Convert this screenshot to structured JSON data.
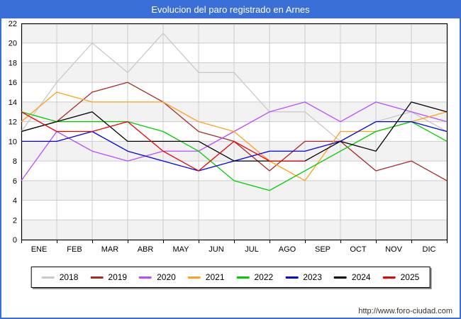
{
  "header": {
    "title": "Evolucion del paro registrado en Arnes"
  },
  "footer": {
    "url": "http://www.foro-ciudad.com"
  },
  "colors": {
    "frame_blue": "#3a6fd8",
    "plot_stripe": "#f2f2f2",
    "grid": "#cccccc",
    "plot_border": "#000000",
    "axis_text": "#000000",
    "footer_text": "#333333"
  },
  "chart_data": {
    "type": "line",
    "title": "Evolucion del paro registrado en Arnes",
    "categories": [
      "ENE",
      "FEB",
      "MAR",
      "ABR",
      "MAY",
      "JUN",
      "JUL",
      "AGO",
      "SEP",
      "OCT",
      "NOV",
      "DIC"
    ],
    "ylabel": "",
    "xlabel": "",
    "ylim": [
      0,
      22
    ],
    "ytick_step": 2,
    "grid": true,
    "legend_position": "bottom",
    "note": "each series starts at the left axis with a lead-in value before ENE; 2025 ends at AGO",
    "series": [
      {
        "name": "2018",
        "color": "#c9c9c9",
        "axis_start": 11,
        "values": [
          16,
          20,
          17,
          21,
          17,
          17,
          13,
          13,
          10,
          12,
          13,
          11
        ]
      },
      {
        "name": "2019",
        "color": "#a52a2a",
        "axis_start": 11,
        "values": [
          12,
          15,
          16,
          14,
          11,
          10,
          7,
          10,
          10,
          7,
          8,
          6
        ]
      },
      {
        "name": "2020",
        "color": "#b84dff",
        "axis_start": 6,
        "values": [
          11,
          9,
          8,
          9,
          9,
          11,
          13,
          14,
          12,
          14,
          13,
          12
        ]
      },
      {
        "name": "2021",
        "color": "#ffa01e",
        "axis_start": 12,
        "values": [
          15,
          14,
          14,
          14,
          12,
          11,
          8,
          6,
          11,
          11,
          12,
          13
        ]
      },
      {
        "name": "2022",
        "color": "#00cc00",
        "axis_start": 13,
        "values": [
          12,
          12,
          12,
          11,
          9,
          6,
          5,
          7,
          9,
          11,
          12,
          10
        ]
      },
      {
        "name": "2023",
        "color": "#0000ee",
        "axis_start": 10,
        "values": [
          10,
          11,
          9,
          8,
          7,
          8,
          9,
          9,
          10,
          12,
          12,
          11
        ]
      },
      {
        "name": "2024",
        "color": "#000000",
        "axis_start": 11,
        "values": [
          12,
          13,
          10,
          10,
          10,
          8,
          8,
          8,
          10,
          9,
          14,
          13
        ]
      },
      {
        "name": "2025",
        "color": "#ee0000",
        "axis_start": 13,
        "values": [
          11,
          11,
          12,
          9,
          7,
          10,
          8,
          8
        ]
      }
    ]
  }
}
